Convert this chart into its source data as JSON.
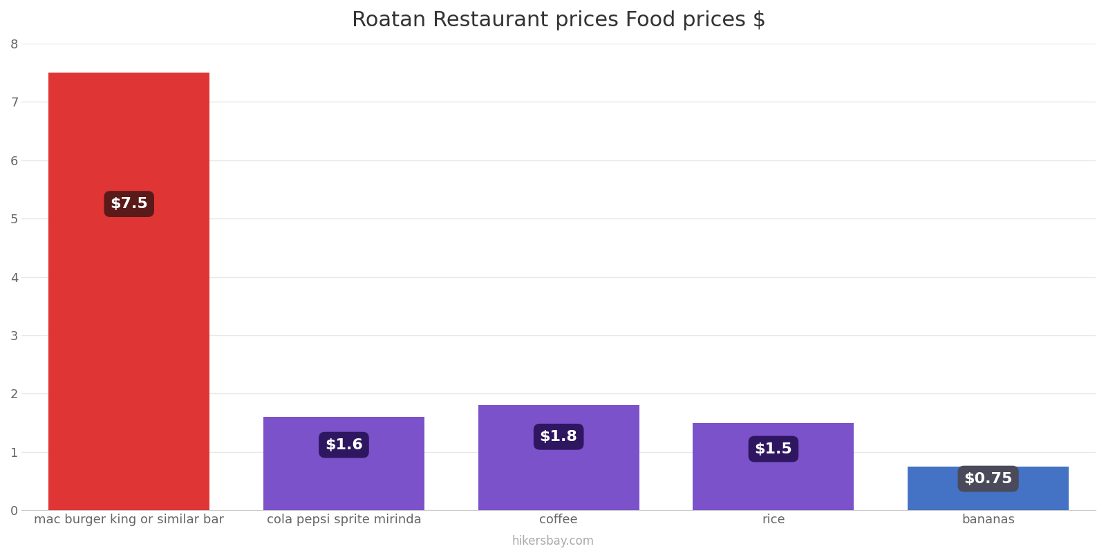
{
  "title": "Roatan Restaurant prices Food prices $",
  "categories": [
    "mac burger king or similar bar",
    "cola pepsi sprite mirinda",
    "coffee",
    "rice",
    "bananas"
  ],
  "values": [
    7.5,
    1.6,
    1.8,
    1.5,
    0.75
  ],
  "labels": [
    "$7.5",
    "$1.6",
    "$1.8",
    "$1.5",
    "$0.75"
  ],
  "bar_colors": [
    "#e03535",
    "#7b52c9",
    "#7b52c9",
    "#7b52c9",
    "#4472c4"
  ],
  "label_box_colors": [
    "#5a1a1a",
    "#2e1760",
    "#2e1760",
    "#2e1760",
    "#4a4a5a"
  ],
  "ylim": [
    0,
    8
  ],
  "yticks": [
    0,
    1,
    2,
    3,
    4,
    5,
    6,
    7,
    8
  ],
  "title_fontsize": 22,
  "tick_fontsize": 13,
  "label_fontsize": 16,
  "footer_text": "hikersbay.com",
  "background_color": "#ffffff",
  "grid_color": "#e8e8e8"
}
